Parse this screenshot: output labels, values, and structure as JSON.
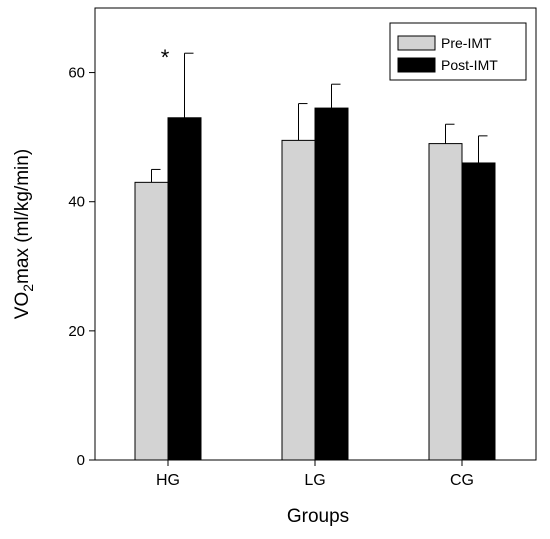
{
  "chart_data": {
    "type": "bar",
    "title": "",
    "xlabel": "Groups",
    "ylabel": {
      "prefix": "VO",
      "subscript": "2",
      "suffix": "max (ml/kg/min)"
    },
    "ylim": [
      0,
      70
    ],
    "yticks": [
      "0",
      "20",
      "40",
      "60"
    ],
    "categories": [
      "HG",
      "LG",
      "CG"
    ],
    "series": [
      {
        "name": "Pre-IMT",
        "color": "#d3d3d3",
        "values": [
          43.0,
          49.5,
          49.0
        ],
        "error": [
          2.0,
          5.7,
          3.0
        ]
      },
      {
        "name": "Post-IMT",
        "color": "#000000",
        "values": [
          53.0,
          54.5,
          46.0
        ],
        "error": [
          10.0,
          3.7,
          4.2
        ]
      }
    ],
    "annotations": [
      {
        "text": "*",
        "category": "HG",
        "series": "Post-IMT"
      }
    ],
    "legend_position": "top-right",
    "grid": false
  }
}
